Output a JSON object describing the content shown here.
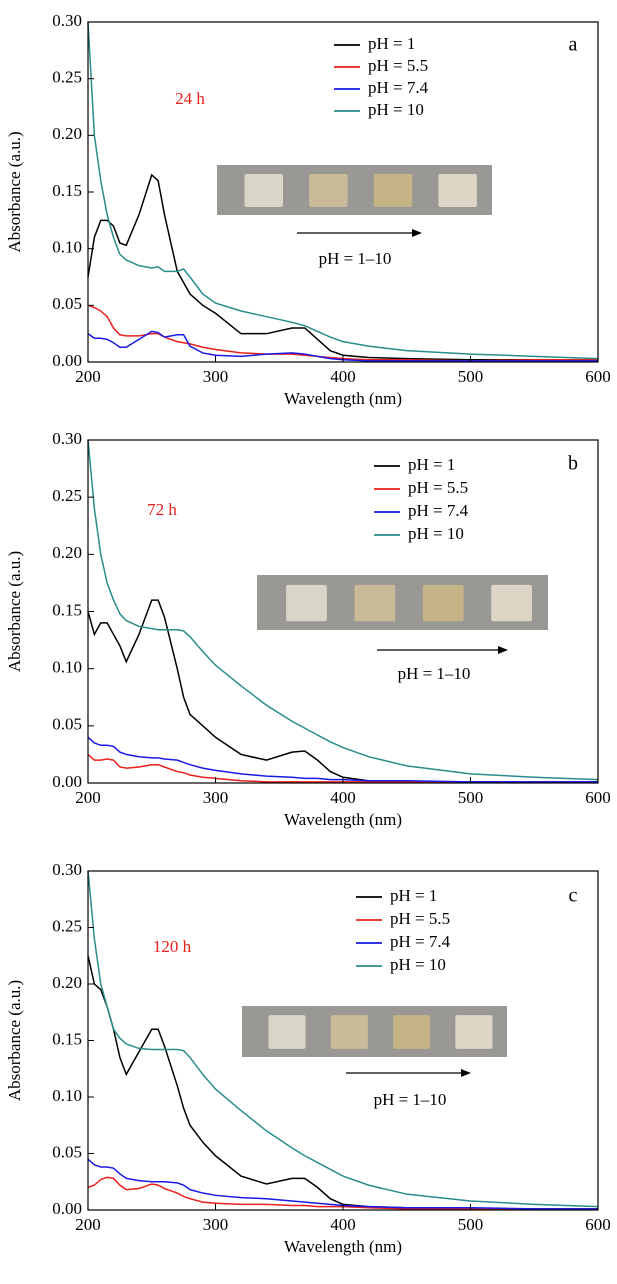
{
  "chart_data": [
    {
      "type": "line",
      "panel_label": "a",
      "annotation": "24 h",
      "inset_label": "pH = 1–10",
      "x_label": "Wavelength (nm)",
      "y_label": "Absorbance (a.u.)",
      "legend": "upper right",
      "xlim": [
        200,
        600
      ],
      "ylim": [
        0,
        0.3
      ],
      "xticks": [
        200,
        300,
        400,
        500,
        600
      ],
      "yticks": [
        {
          "value": 0,
          "label": "0.00"
        },
        {
          "value": 0.05,
          "label": "0.05"
        },
        {
          "value": 0.1,
          "label": "0.10"
        },
        {
          "value": 0.15,
          "label": "0.15"
        },
        {
          "value": 0.2,
          "label": "0.20"
        },
        {
          "value": 0.25,
          "label": "0.25"
        },
        {
          "value": 0.3,
          "label": "0.30"
        }
      ],
      "x": [
        200,
        205,
        210,
        215,
        220,
        225,
        230,
        240,
        250,
        255,
        260,
        270,
        275,
        280,
        290,
        300,
        320,
        340,
        360,
        370,
        380,
        390,
        400,
        420,
        450,
        500,
        550,
        600
      ],
      "series": [
        {
          "name": "pH = 1",
          "color": "#000000",
          "values": [
            0.075,
            0.11,
            0.125,
            0.125,
            0.12,
            0.105,
            0.103,
            0.13,
            0.165,
            0.16,
            0.13,
            0.08,
            0.07,
            0.06,
            0.05,
            0.043,
            0.025,
            0.025,
            0.03,
            0.03,
            0.02,
            0.01,
            0.006,
            0.004,
            0.003,
            0.002,
            0.002,
            0.001
          ]
        },
        {
          "name": "pH = 5.5",
          "color": "#e8201c",
          "values": [
            0.05,
            0.048,
            0.045,
            0.04,
            0.03,
            0.024,
            0.023,
            0.023,
            0.025,
            0.025,
            0.022,
            0.018,
            0.017,
            0.016,
            0.013,
            0.011,
            0.008,
            0.007,
            0.007,
            0.006,
            0.005,
            0.004,
            0.003,
            0.002,
            0.002,
            0.001,
            0.002,
            0.002
          ]
        },
        {
          "name": "pH = 7.4",
          "color": "#1a1ae6",
          "values": [
            0.025,
            0.021,
            0.021,
            0.02,
            0.017,
            0.013,
            0.013,
            0.02,
            0.027,
            0.026,
            0.022,
            0.024,
            0.024,
            0.014,
            0.008,
            0.006,
            0.005,
            0.007,
            0.008,
            0.007,
            0.005,
            0.003,
            0.002,
            0.001,
            0.001,
            0.001,
            0.001,
            0.001
          ]
        },
        {
          "name": "pH = 10",
          "color": "#2a8c8c",
          "values": [
            0.3,
            0.2,
            0.16,
            0.13,
            0.11,
            0.095,
            0.09,
            0.085,
            0.083,
            0.084,
            0.08,
            0.08,
            0.082,
            0.075,
            0.06,
            0.052,
            0.045,
            0.04,
            0.035,
            0.032,
            0.027,
            0.022,
            0.018,
            0.014,
            0.01,
            0.007,
            0.005,
            0.003
          ]
        }
      ]
    },
    {
      "type": "line",
      "panel_label": "b",
      "annotation": "72 h",
      "inset_label": "pH = 1–10",
      "x_label": "Wavelength (nm)",
      "y_label": "Absorbance (a.u.)",
      "legend": "upper right",
      "xlim": [
        200,
        600
      ],
      "ylim": [
        0,
        0.3
      ],
      "xticks": [
        200,
        300,
        400,
        500,
        600
      ],
      "yticks": [
        {
          "value": 0,
          "label": "0.00"
        },
        {
          "value": 0.05,
          "label": "0.05"
        },
        {
          "value": 0.1,
          "label": "0.10"
        },
        {
          "value": 0.15,
          "label": "0.15"
        },
        {
          "value": 0.2,
          "label": "0.20"
        },
        {
          "value": 0.25,
          "label": "0.25"
        },
        {
          "value": 0.3,
          "label": "0.30"
        }
      ],
      "x": [
        200,
        205,
        210,
        215,
        220,
        225,
        230,
        240,
        250,
        255,
        260,
        270,
        275,
        280,
        290,
        300,
        320,
        340,
        360,
        370,
        380,
        390,
        400,
        420,
        450,
        500,
        550,
        600
      ],
      "series": [
        {
          "name": "pH = 1",
          "color": "#000000",
          "values": [
            0.15,
            0.13,
            0.14,
            0.14,
            0.13,
            0.12,
            0.106,
            0.13,
            0.16,
            0.16,
            0.145,
            0.1,
            0.075,
            0.06,
            0.05,
            0.04,
            0.025,
            0.02,
            0.027,
            0.028,
            0.02,
            0.01,
            0.005,
            0.002,
            0.001,
            0.001,
            0.001,
            0.001
          ]
        },
        {
          "name": "pH = 5.5",
          "color": "#e8201c",
          "values": [
            0.025,
            0.02,
            0.02,
            0.021,
            0.02,
            0.014,
            0.013,
            0.014,
            0.016,
            0.016,
            0.014,
            0.01,
            0.009,
            0.007,
            0.005,
            0.004,
            0.002,
            0.001,
            0.001,
            0.001,
            0.001,
            0.001,
            0.001,
            0.001,
            0.001,
            0.001,
            0.001,
            0.001
          ]
        },
        {
          "name": "pH = 7.4",
          "color": "#1a1ae6",
          "values": [
            0.04,
            0.035,
            0.033,
            0.033,
            0.032,
            0.027,
            0.025,
            0.023,
            0.022,
            0.022,
            0.021,
            0.02,
            0.018,
            0.016,
            0.013,
            0.011,
            0.008,
            0.006,
            0.005,
            0.004,
            0.004,
            0.003,
            0.003,
            0.002,
            0.002,
            0.001,
            0.001,
            0.001
          ]
        },
        {
          "name": "pH = 10",
          "color": "#2a8c8c",
          "values": [
            0.3,
            0.24,
            0.2,
            0.175,
            0.16,
            0.148,
            0.142,
            0.137,
            0.135,
            0.134,
            0.134,
            0.134,
            0.133,
            0.128,
            0.115,
            0.103,
            0.085,
            0.068,
            0.054,
            0.048,
            0.042,
            0.036,
            0.031,
            0.023,
            0.015,
            0.008,
            0.005,
            0.003
          ]
        }
      ]
    },
    {
      "type": "line",
      "panel_label": "c",
      "annotation": "120 h",
      "inset_label": "pH = 1–10",
      "x_label": "Wavelength (nm)",
      "y_label": "Absorbance (a.u.)",
      "legend": "upper right",
      "xlim": [
        200,
        600
      ],
      "ylim": [
        0,
        0.3
      ],
      "xticks": [
        200,
        300,
        400,
        500,
        600
      ],
      "yticks": [
        {
          "value": 0,
          "label": "0.00"
        },
        {
          "value": 0.05,
          "label": "0.05"
        },
        {
          "value": 0.1,
          "label": "0.10"
        },
        {
          "value": 0.15,
          "label": "0.15"
        },
        {
          "value": 0.2,
          "label": "0.20"
        },
        {
          "value": 0.25,
          "label": "0.25"
        },
        {
          "value": 0.3,
          "label": "0.30"
        }
      ],
      "x": [
        200,
        205,
        210,
        215,
        220,
        225,
        230,
        240,
        250,
        255,
        260,
        270,
        275,
        280,
        290,
        300,
        320,
        340,
        360,
        370,
        380,
        390,
        400,
        420,
        450,
        500,
        550,
        600
      ],
      "series": [
        {
          "name": "pH = 1",
          "color": "#000000",
          "values": [
            0.225,
            0.2,
            0.195,
            0.18,
            0.16,
            0.135,
            0.12,
            0.14,
            0.16,
            0.16,
            0.145,
            0.11,
            0.09,
            0.075,
            0.06,
            0.048,
            0.03,
            0.023,
            0.028,
            0.028,
            0.02,
            0.01,
            0.005,
            0.003,
            0.002,
            0.001,
            0.001,
            0.001
          ]
        },
        {
          "name": "pH = 5.5",
          "color": "#e8201c",
          "values": [
            0.02,
            0.022,
            0.027,
            0.029,
            0.028,
            0.022,
            0.018,
            0.019,
            0.023,
            0.022,
            0.019,
            0.015,
            0.012,
            0.01,
            0.007,
            0.006,
            0.005,
            0.005,
            0.004,
            0.004,
            0.003,
            0.003,
            0.003,
            0.002,
            0.001,
            0.001,
            0.001,
            0.001
          ]
        },
        {
          "name": "pH = 7.4",
          "color": "#1a1ae6",
          "values": [
            0.045,
            0.04,
            0.038,
            0.038,
            0.037,
            0.032,
            0.028,
            0.026,
            0.025,
            0.025,
            0.025,
            0.024,
            0.022,
            0.018,
            0.015,
            0.013,
            0.011,
            0.01,
            0.008,
            0.007,
            0.006,
            0.005,
            0.004,
            0.003,
            0.002,
            0.002,
            0.001,
            0.001
          ]
        },
        {
          "name": "pH = 10",
          "color": "#2a8c8c",
          "values": [
            0.3,
            0.24,
            0.2,
            0.18,
            0.16,
            0.152,
            0.147,
            0.143,
            0.142,
            0.142,
            0.142,
            0.142,
            0.141,
            0.135,
            0.12,
            0.107,
            0.088,
            0.07,
            0.055,
            0.048,
            0.042,
            0.036,
            0.03,
            0.022,
            0.014,
            0.008,
            0.005,
            0.003
          ]
        }
      ]
    }
  ]
}
